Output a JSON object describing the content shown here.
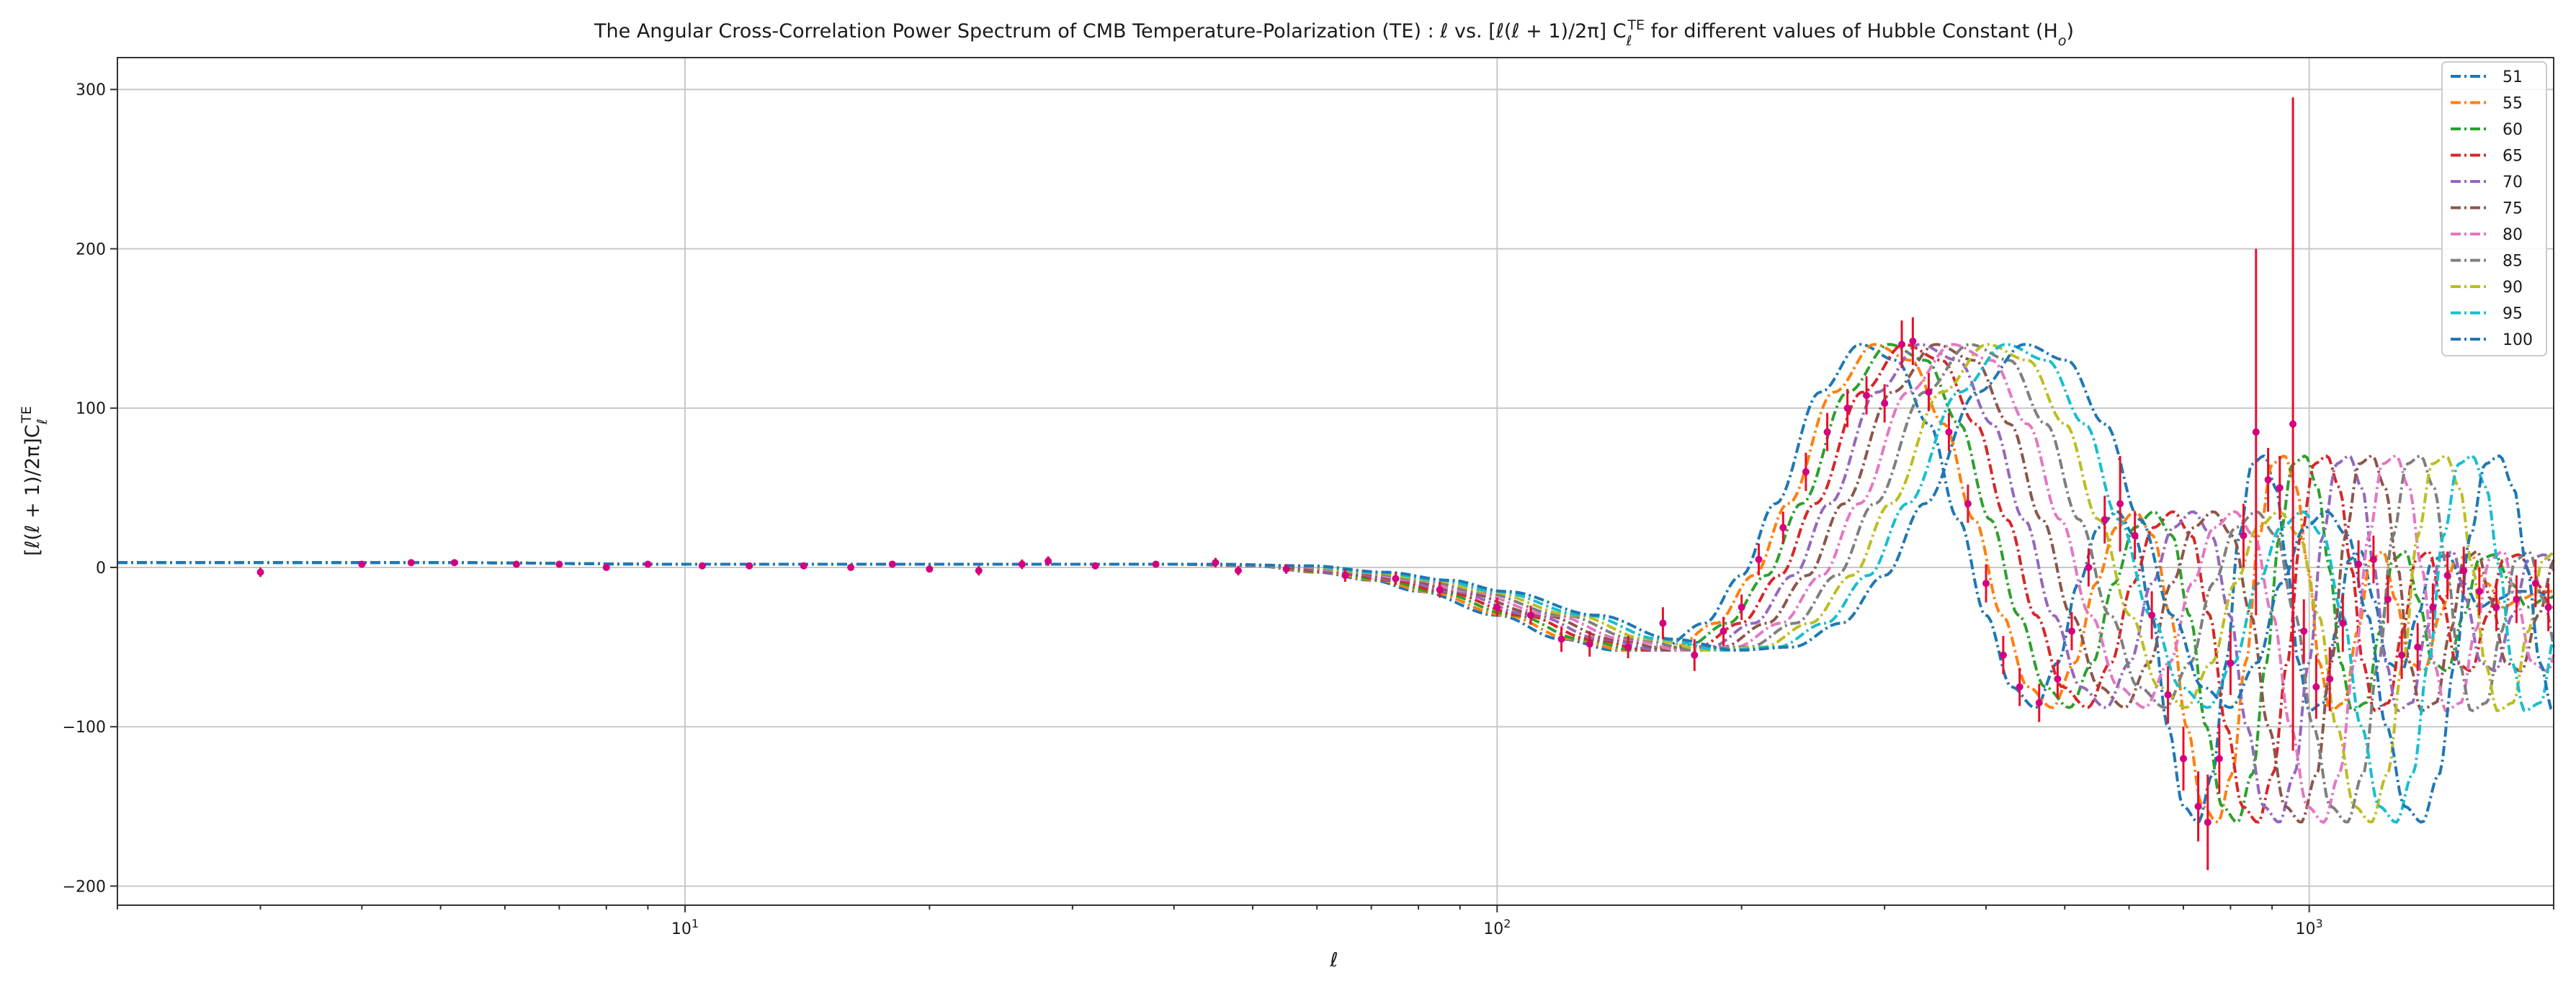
{
  "chart_data": {
    "type": "line",
    "title": "The Angular Cross-Correlation Power Spectrum of CMB Temperature-Polarization (TE) : ℓ vs. [ℓ(ℓ + 1)/2π] C",
    "title_sub": "ℓ",
    "title_sup": "TE",
    "title_tail": " for different values of Hubble Constant (H",
    "title_tail_sub": "o",
    "title_end": ")",
    "xlabel": "ℓ",
    "ylabel": "[ℓ(ℓ + 1)/2π]C",
    "ylabel_sub": "ℓ",
    "ylabel_sup": "TE",
    "x_scale": "log",
    "xlim": [
      2,
      2000
    ],
    "ylim": [
      -212,
      320
    ],
    "grid": true,
    "legend_position": "top-right",
    "x_ticks": [
      {
        "value": 10,
        "base": "10",
        "exp": "1"
      },
      {
        "value": 100,
        "base": "10",
        "exp": "2"
      },
      {
        "value": 1000,
        "base": "10",
        "exp": "3"
      }
    ],
    "y_ticks": [
      {
        "value": 300,
        "label": "300"
      },
      {
        "value": 200,
        "label": "200"
      },
      {
        "value": 100,
        "label": "100"
      },
      {
        "value": 0,
        "label": "0"
      },
      {
        "value": -100,
        "label": "−100"
      },
      {
        "value": -200,
        "label": "−200"
      }
    ],
    "series": [
      {
        "name": "51",
        "color": "#1f77b4",
        "shift": 0.0
      },
      {
        "name": "55",
        "color": "#ff7f0e",
        "shift": 0.03
      },
      {
        "name": "60",
        "color": "#2ca02c",
        "shift": 0.06
      },
      {
        "name": "65",
        "color": "#d62728",
        "shift": 0.09
      },
      {
        "name": "70",
        "color": "#9467bd",
        "shift": 0.12
      },
      {
        "name": "75",
        "color": "#8c564b",
        "shift": 0.15
      },
      {
        "name": "80",
        "color": "#e377c2",
        "shift": 0.18
      },
      {
        "name": "85",
        "color": "#7f7f7f",
        "shift": 0.21
      },
      {
        "name": "90",
        "color": "#bcbd22",
        "shift": 0.24
      },
      {
        "name": "95",
        "color": "#17becf",
        "shift": 0.27
      },
      {
        "name": "100",
        "color": "#1f77b4",
        "shift": 0.3
      }
    ],
    "reference_curve": {
      "x": [
        2,
        5,
        10,
        20,
        30,
        40,
        50,
        60,
        70,
        80,
        100,
        120,
        140,
        160,
        180,
        200,
        220,
        250,
        280,
        310,
        340,
        370,
        400,
        430,
        460,
        490,
        520,
        550,
        580,
        610,
        640,
        670,
        700,
        730,
        760,
        790,
        820,
        850,
        880,
        910,
        940,
        970,
        1000,
        1040,
        1080,
        1120,
        1160,
        1200,
        1250,
        1300,
        1360,
        1420,
        1480,
        1550,
        1620,
        1700,
        1800,
        1900,
        2000
      ],
      "y": [
        3,
        3,
        2,
        2,
        2,
        2,
        1,
        -3,
        -8,
        -15,
        -30,
        -45,
        -52,
        -50,
        -35,
        -5,
        40,
        110,
        140,
        130,
        90,
        30,
        -30,
        -75,
        -88,
        -60,
        -10,
        25,
        35,
        20,
        -30,
        -100,
        -150,
        -160,
        -130,
        -60,
        20,
        65,
        70,
        50,
        0,
        -60,
        -90,
        -85,
        -40,
        5,
        10,
        -20,
        -60,
        -65,
        -30,
        5,
        8,
        -10,
        -25,
        -20,
        -15,
        -15,
        -20
      ]
    },
    "measurements": {
      "color": "#d4007f",
      "error_color": "#e8102a",
      "points": [
        {
          "x": 3.0,
          "y": -3,
          "err": 3
        },
        {
          "x": 4.0,
          "y": 2,
          "err": 2
        },
        {
          "x": 4.6,
          "y": 3,
          "err": 2
        },
        {
          "x": 5.2,
          "y": 3,
          "err": 2
        },
        {
          "x": 6.2,
          "y": 2,
          "err": 2
        },
        {
          "x": 7.0,
          "y": 2,
          "err": 2
        },
        {
          "x": 8.0,
          "y": 0,
          "err": 2
        },
        {
          "x": 9.0,
          "y": 2,
          "err": 2
        },
        {
          "x": 10.5,
          "y": 1,
          "err": 2
        },
        {
          "x": 12.0,
          "y": 1,
          "err": 2
        },
        {
          "x": 14.0,
          "y": 1,
          "err": 2
        },
        {
          "x": 16.0,
          "y": 0,
          "err": 2
        },
        {
          "x": 18.0,
          "y": 2,
          "err": 2
        },
        {
          "x": 20.0,
          "y": -1,
          "err": 2
        },
        {
          "x": 23.0,
          "y": -2,
          "err": 3
        },
        {
          "x": 26.0,
          "y": 2,
          "err": 3
        },
        {
          "x": 28.0,
          "y": 4,
          "err": 3
        },
        {
          "x": 32.0,
          "y": 1,
          "err": 2
        },
        {
          "x": 38.0,
          "y": 2,
          "err": 2
        },
        {
          "x": 45.0,
          "y": 3,
          "err": 3
        },
        {
          "x": 48.0,
          "y": -2,
          "err": 3
        },
        {
          "x": 55.0,
          "y": -1,
          "err": 3
        },
        {
          "x": 65.0,
          "y": -5,
          "err": 4
        },
        {
          "x": 75.0,
          "y": -7,
          "err": 4
        },
        {
          "x": 85.0,
          "y": -14,
          "err": 5
        },
        {
          "x": 100.0,
          "y": -25,
          "err": 6
        },
        {
          "x": 110.0,
          "y": -30,
          "err": 6
        },
        {
          "x": 120.0,
          "y": -45,
          "err": 8
        },
        {
          "x": 130.0,
          "y": -48,
          "err": 8
        },
        {
          "x": 145.0,
          "y": -50,
          "err": 7
        },
        {
          "x": 160.0,
          "y": -35,
          "err": 10
        },
        {
          "x": 175.0,
          "y": -55,
          "err": 10
        },
        {
          "x": 190.0,
          "y": -40,
          "err": 9
        },
        {
          "x": 200.0,
          "y": -25,
          "err": 8
        },
        {
          "x": 210.0,
          "y": 5,
          "err": 10
        },
        {
          "x": 225.0,
          "y": 25,
          "err": 10
        },
        {
          "x": 240.0,
          "y": 60,
          "err": 12
        },
        {
          "x": 255.0,
          "y": 85,
          "err": 12
        },
        {
          "x": 270.0,
          "y": 100,
          "err": 12
        },
        {
          "x": 285.0,
          "y": 108,
          "err": 12
        },
        {
          "x": 300.0,
          "y": 103,
          "err": 12
        },
        {
          "x": 315.0,
          "y": 140,
          "err": 15
        },
        {
          "x": 325.0,
          "y": 142,
          "err": 15
        },
        {
          "x": 340.0,
          "y": 110,
          "err": 12
        },
        {
          "x": 360.0,
          "y": 85,
          "err": 12
        },
        {
          "x": 380.0,
          "y": 40,
          "err": 12
        },
        {
          "x": 400.0,
          "y": -10,
          "err": 12
        },
        {
          "x": 420.0,
          "y": -55,
          "err": 12
        },
        {
          "x": 440.0,
          "y": -75,
          "err": 12
        },
        {
          "x": 465.0,
          "y": -85,
          "err": 12
        },
        {
          "x": 490.0,
          "y": -70,
          "err": 12
        },
        {
          "x": 510.0,
          "y": -40,
          "err": 12
        },
        {
          "x": 535.0,
          "y": 0,
          "err": 12
        },
        {
          "x": 560.0,
          "y": 30,
          "err": 15
        },
        {
          "x": 585.0,
          "y": 40,
          "err": 30
        },
        {
          "x": 610.0,
          "y": 20,
          "err": 15
        },
        {
          "x": 640.0,
          "y": -30,
          "err": 15
        },
        {
          "x": 670.0,
          "y": -80,
          "err": 18
        },
        {
          "x": 700.0,
          "y": -120,
          "err": 20
        },
        {
          "x": 730.0,
          "y": -150,
          "err": 22
        },
        {
          "x": 750.0,
          "y": -160,
          "err": 30
        },
        {
          "x": 775.0,
          "y": -120,
          "err": 22
        },
        {
          "x": 800.0,
          "y": -60,
          "err": 20
        },
        {
          "x": 830.0,
          "y": 20,
          "err": 20
        },
        {
          "x": 860.0,
          "y": 85,
          "err": 115
        },
        {
          "x": 890.0,
          "y": 55,
          "err": 20
        },
        {
          "x": 920.0,
          "y": 50,
          "err": 20
        },
        {
          "x": 955.0,
          "y": 90,
          "err": 205
        },
        {
          "x": 985.0,
          "y": -40,
          "err": 20
        },
        {
          "x": 1020.0,
          "y": -75,
          "err": 20
        },
        {
          "x": 1060.0,
          "y": -70,
          "err": 20
        },
        {
          "x": 1100.0,
          "y": -35,
          "err": 18
        },
        {
          "x": 1150.0,
          "y": 2,
          "err": 15
        },
        {
          "x": 1200.0,
          "y": 5,
          "err": 15
        },
        {
          "x": 1250.0,
          "y": -20,
          "err": 15
        },
        {
          "x": 1300.0,
          "y": -55,
          "err": 15
        },
        {
          "x": 1360.0,
          "y": -50,
          "err": 15
        },
        {
          "x": 1420.0,
          "y": -25,
          "err": 15
        },
        {
          "x": 1480.0,
          "y": -5,
          "err": 15
        },
        {
          "x": 1550.0,
          "y": -2,
          "err": 15
        },
        {
          "x": 1620.0,
          "y": -15,
          "err": 15
        },
        {
          "x": 1700.0,
          "y": -25,
          "err": 15
        },
        {
          "x": 1800.0,
          "y": -20,
          "err": 15
        },
        {
          "x": 1900.0,
          "y": -10,
          "err": 15
        },
        {
          "x": 1970.0,
          "y": -25,
          "err": 15
        }
      ]
    }
  }
}
